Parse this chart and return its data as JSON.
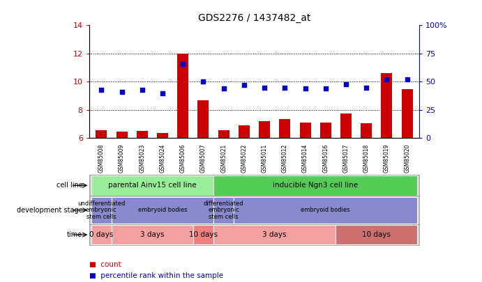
{
  "title": "GDS2276 / 1437482_at",
  "samples": [
    "GSM85008",
    "GSM85009",
    "GSM85023",
    "GSM85024",
    "GSM85006",
    "GSM85007",
    "GSM85021",
    "GSM85022",
    "GSM85011",
    "GSM85012",
    "GSM85014",
    "GSM85016",
    "GSM85017",
    "GSM85018",
    "GSM85019",
    "GSM85020"
  ],
  "count_values": [
    6.55,
    6.45,
    6.5,
    6.35,
    12.0,
    8.7,
    6.55,
    6.9,
    7.2,
    7.35,
    7.1,
    7.1,
    7.75,
    7.05,
    10.6,
    9.5
  ],
  "percentile_values": [
    43,
    41,
    43,
    40,
    66,
    50,
    44,
    47,
    45,
    45,
    44,
    44,
    48,
    45,
    52,
    52
  ],
  "ylim_left": [
    6,
    14
  ],
  "ylim_right": [
    0,
    100
  ],
  "yticks_left": [
    6,
    8,
    10,
    12,
    14
  ],
  "yticks_right": [
    0,
    25,
    50,
    75,
    100
  ],
  "ytick_labels_right": [
    "0",
    "25",
    "50",
    "75",
    "100%"
  ],
  "bar_color": "#CC0000",
  "dot_color": "#0000CC",
  "bg_color": "#FFFFFF",
  "cell_segs": [
    {
      "span": [
        0,
        5
      ],
      "label": "parental Ainv15 cell line",
      "color": "#99EE99"
    },
    {
      "span": [
        6,
        15
      ],
      "label": "inducible Ngn3 cell line",
      "color": "#55CC55"
    }
  ],
  "dev_segs": [
    {
      "span": [
        0,
        0
      ],
      "label": "undifferentiated\nembryonic\nstem cells",
      "color": "#8888CC"
    },
    {
      "span": [
        1,
        5
      ],
      "label": "embryoid bodies",
      "color": "#8888CC"
    },
    {
      "span": [
        6,
        6
      ],
      "label": "differentiated\nembryonic\nstem cells",
      "color": "#8888CC"
    },
    {
      "span": [
        7,
        15
      ],
      "label": "embryoid bodies",
      "color": "#8888CC"
    }
  ],
  "time_segs": [
    {
      "span": [
        0,
        0
      ],
      "label": "0 days",
      "color": "#F4A0A0"
    },
    {
      "span": [
        1,
        4
      ],
      "label": "3 days",
      "color": "#F4A0A0"
    },
    {
      "span": [
        5,
        5
      ],
      "label": "10 days",
      "color": "#F08080"
    },
    {
      "span": [
        6,
        11
      ],
      "label": "3 days",
      "color": "#F4A0A0"
    },
    {
      "span": [
        12,
        15
      ],
      "label": "10 days",
      "color": "#CD7070"
    }
  ],
  "row_labels": [
    "cell line",
    "development stage",
    "time"
  ],
  "legend_count_color": "#CC0000",
  "legend_dot_color": "#0000CC",
  "axis_color_left": "#CC0000",
  "axis_color_right": "#0000CC"
}
